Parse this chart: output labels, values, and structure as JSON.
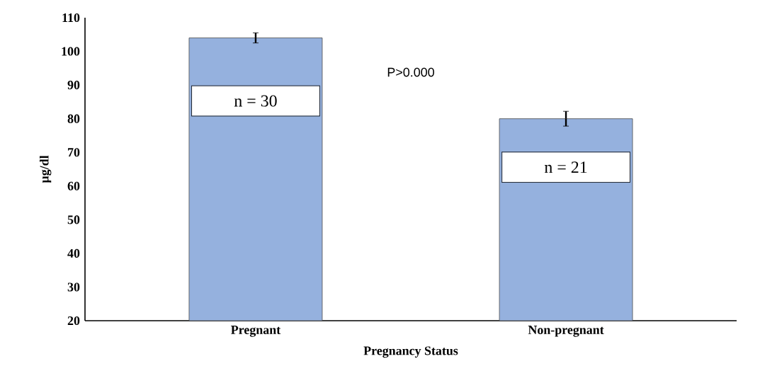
{
  "chart_data": {
    "type": "bar",
    "xlabel": "Pregnancy Status",
    "ylabel": "µg/dl",
    "categories": [
      "Pregnant",
      "Non-pregnant"
    ],
    "values": [
      104,
      80
    ],
    "errors": [
      1.5,
      2.2
    ],
    "color": "#95b1de",
    "ylim": [
      20,
      110
    ],
    "yticks": [
      20,
      30,
      40,
      50,
      60,
      70,
      80,
      90,
      100,
      110
    ],
    "annotations": [
      "n = 30",
      "n = 21",
      "P>0.000"
    ],
    "grid": false
  }
}
